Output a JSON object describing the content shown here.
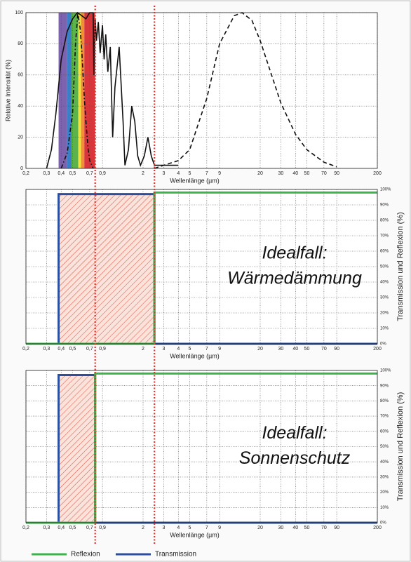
{
  "chart_data": [
    {
      "type": "line",
      "ylabel": "Relative Intensität (%)",
      "xlabel": "Wellenlänge (µm)",
      "xscale": "log",
      "grid": true,
      "xlim": [
        0.2,
        200
      ],
      "ylim": [
        0,
        100
      ],
      "xticks": [
        {
          "value": 0.2,
          "label": "0,2"
        },
        {
          "value": 0.3,
          "label": "0,3"
        },
        {
          "value": 0.4,
          "label": "0,4"
        },
        {
          "value": 0.5,
          "label": "0,5"
        },
        {
          "value": 0.7,
          "label": "0,7"
        },
        {
          "value": 0.9,
          "label": "0,9"
        },
        2,
        3,
        4,
        5,
        7,
        9,
        20,
        30,
        40,
        50,
        70,
        90,
        200
      ],
      "yticks": [
        0,
        20,
        40,
        60,
        80,
        100
      ],
      "yaxis_side": "left",
      "bands": [
        {
          "from": 0.38,
          "to": 0.45,
          "color": "#7d62ad"
        },
        {
          "from": 0.45,
          "to": 0.49,
          "color": "#3b7fc6"
        },
        {
          "from": 0.49,
          "to": 0.56,
          "color": "#5cb34c"
        },
        {
          "from": 0.56,
          "to": 0.59,
          "color": "#efe244"
        },
        {
          "from": 0.59,
          "to": 0.63,
          "color": "#ee9133"
        },
        {
          "from": 0.63,
          "to": 0.78,
          "color": "#d9363b"
        }
      ],
      "series": [
        {
          "color": "#111111",
          "dash": "solid",
          "x": [
            0.3,
            0.33,
            0.36,
            0.4,
            0.45,
            0.5,
            0.55,
            0.6,
            0.65,
            0.7,
            0.75,
            0.76,
            0.78,
            0.8,
            0.83,
            0.86,
            0.9,
            0.93,
            0.96,
            1.0,
            1.05,
            1.1,
            1.15,
            1.25,
            1.35,
            1.4,
            1.5,
            1.6,
            1.7,
            1.8,
            1.9,
            2.05,
            2.2,
            2.35,
            2.5,
            3,
            4
          ],
          "values": [
            0,
            12,
            35,
            70,
            88,
            96,
            100,
            98,
            96,
            100,
            100,
            60,
            96,
            82,
            94,
            74,
            92,
            70,
            86,
            62,
            78,
            20,
            52,
            78,
            30,
            2,
            12,
            40,
            30,
            8,
            2,
            8,
            20,
            8,
            2,
            2,
            2
          ]
        },
        {
          "color": "#111111",
          "dash": "dashdot",
          "x": [
            0.4,
            0.45,
            0.5,
            0.53,
            0.555,
            0.58,
            0.6,
            0.63,
            0.65,
            0.68,
            0.7,
            0.75
          ],
          "values": [
            0,
            10,
            35,
            80,
            100,
            90,
            75,
            45,
            30,
            12,
            5,
            0
          ]
        },
        {
          "color": "#111111",
          "dash": "dashed",
          "x": [
            2.5,
            3,
            4,
            5,
            7,
            9,
            12,
            14,
            17,
            20,
            30,
            40,
            50,
            70,
            90
          ],
          "values": [
            0,
            2,
            5,
            12,
            45,
            80,
            98,
            100,
            95,
            82,
            42,
            22,
            12,
            4,
            1
          ]
        }
      ]
    },
    {
      "type": "area",
      "ylabel": "Transmission und Reflexion (%)",
      "xlabel": "Wellenlänge (µm)",
      "xscale": "log",
      "grid": true,
      "xlim": [
        0.2,
        200
      ],
      "ylim": [
        0,
        100
      ],
      "xticks": [
        {
          "value": 0.2,
          "label": "0,2"
        },
        {
          "value": 0.3,
          "label": "0,3"
        },
        {
          "value": 0.4,
          "label": "0,4"
        },
        {
          "value": 0.5,
          "label": "0,5"
        },
        {
          "value": 0.7,
          "label": "0,7"
        },
        {
          "value": 0.9,
          "label": "0,9"
        },
        2,
        3,
        4,
        5,
        7,
        9,
        20,
        30,
        40,
        50,
        70,
        90,
        200
      ],
      "yticks": [
        {
          "value": 0,
          "label": "0%"
        },
        {
          "value": 10,
          "label": "10%"
        },
        {
          "value": 20,
          "label": "20%"
        },
        {
          "value": 30,
          "label": "30%"
        },
        {
          "value": 40,
          "label": "40%"
        },
        {
          "value": 50,
          "label": "50%"
        },
        {
          "value": 60,
          "label": "60%"
        },
        {
          "value": 70,
          "label": "70%"
        },
        {
          "value": 80,
          "label": "80%"
        },
        {
          "value": 90,
          "label": "90%"
        },
        {
          "value": 100,
          "label": "100%"
        }
      ],
      "yaxis_side": "right",
      "annotation": [
        "Idealfall:",
        "Wärmedämmung"
      ],
      "series": [
        {
          "color": "#2b4f9e",
          "fill": "hatch",
          "x": [
            0.2,
            0.38,
            0.38,
            2.5,
            2.5,
            200
          ],
          "values": [
            0,
            0,
            97,
            97,
            0,
            0
          ]
        },
        {
          "color": "#3cb44b",
          "fill": "none",
          "x": [
            0.2,
            2.5,
            2.5,
            200
          ],
          "values": [
            0,
            0,
            98,
            98
          ]
        }
      ]
    },
    {
      "type": "area",
      "ylabel": "Transmission und Reflexion (%)",
      "xlabel": "Wellenlänge (µm)",
      "xscale": "log",
      "grid": true,
      "xlim": [
        0.2,
        200
      ],
      "ylim": [
        0,
        100
      ],
      "xticks": [
        {
          "value": 0.2,
          "label": "0,2"
        },
        {
          "value": 0.3,
          "label": "0,3"
        },
        {
          "value": 0.4,
          "label": "0,4"
        },
        {
          "value": 0.5,
          "label": "0,5"
        },
        {
          "value": 0.7,
          "label": "0,7"
        },
        {
          "value": 0.9,
          "label": "0,9"
        },
        2,
        3,
        4,
        5,
        7,
        9,
        20,
        30,
        40,
        50,
        70,
        90,
        200
      ],
      "yticks": [
        {
          "value": 0,
          "label": "0%"
        },
        {
          "value": 10,
          "label": "10%"
        },
        {
          "value": 20,
          "label": "20%"
        },
        {
          "value": 30,
          "label": "30%"
        },
        {
          "value": 40,
          "label": "40%"
        },
        {
          "value": 50,
          "label": "50%"
        },
        {
          "value": 60,
          "label": "60%"
        },
        {
          "value": 70,
          "label": "70%"
        },
        {
          "value": 80,
          "label": "80%"
        },
        {
          "value": 90,
          "label": "90%"
        },
        {
          "value": 100,
          "label": "100%"
        }
      ],
      "yaxis_side": "right",
      "annotation": [
        "Idealfall:",
        "Sonnenschutz"
      ],
      "series": [
        {
          "color": "#2b4f9e",
          "fill": "hatch",
          "x": [
            0.2,
            0.38,
            0.38,
            0.78,
            0.78,
            200
          ],
          "values": [
            0,
            0,
            97,
            97,
            0,
            0
          ]
        },
        {
          "color": "#3cb44b",
          "fill": "none",
          "x": [
            0.2,
            0.78,
            0.78,
            200
          ],
          "values": [
            0,
            0,
            98,
            98
          ]
        }
      ]
    }
  ],
  "reference_lines": {
    "x": [
      0.78,
      2.5
    ],
    "color": "#e8302b"
  },
  "legend": [
    {
      "name": "Reflexion",
      "color": "#3cb44b"
    },
    {
      "name": "Transmission",
      "color": "#2b4f9e"
    }
  ]
}
